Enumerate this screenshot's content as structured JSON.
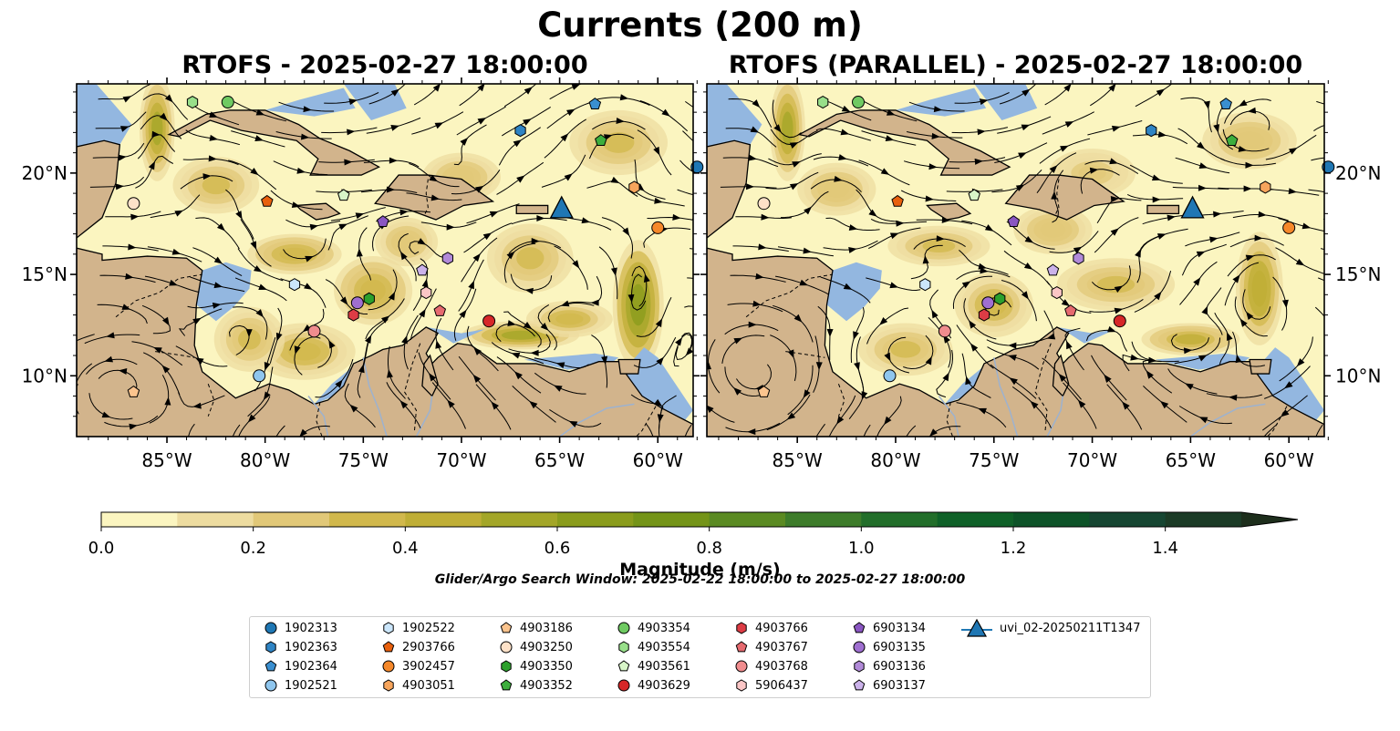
{
  "figure": {
    "suptitle": "Currents (200 m)",
    "panels": [
      {
        "title": "RTOFS - 2025-02-27 18:00:00"
      },
      {
        "title": "RTOFS (PARALLEL) - 2025-02-27 18:00:00"
      }
    ],
    "search_window": "Glider/Argo Search Window: 2025-02-22 18:00:00 to 2025-02-27 18:00:00",
    "colors": {
      "land": "#d2b48c",
      "ocean": "#93b7e0",
      "coast": "#000000"
    }
  },
  "chart_data": {
    "type": "heatmap",
    "variable": "current magnitude with streamlines",
    "x_ticks": [
      "85°W",
      "80°W",
      "75°W",
      "70°W",
      "65°W",
      "60°W"
    ],
    "y_ticks": [
      "20°N",
      "15°N",
      "10°N"
    ],
    "lon_values": [
      -85,
      -80,
      -75,
      -70,
      -65,
      -60
    ],
    "lat_values": [
      20,
      15,
      10
    ],
    "xlim": [
      -89.6,
      -58.2
    ],
    "ylim": [
      7,
      24.4
    ],
    "colorbar": {
      "label": "Magnitude (m/s)",
      "ticks": [
        "0.0",
        "0.2",
        "0.4",
        "0.6",
        "0.8",
        "1.0",
        "1.2",
        "1.4"
      ],
      "range": [
        0,
        1.5
      ],
      "extend": "max",
      "colors": [
        "#fbf5c0",
        "#eddca0",
        "#e1c878",
        "#d1b84c",
        "#bfae36",
        "#a3a628",
        "#8a9c1c",
        "#749418",
        "#5a8a22",
        "#3d7c2a",
        "#226e2a",
        "#0f6128",
        "#0d5328",
        "#164632",
        "#1b3b26",
        "#1d2e1c"
      ]
    },
    "platforms": [
      {
        "id": "1902313",
        "marker": "circle",
        "color": "#1f77b4",
        "lon": -58.0,
        "lat": 20.3
      },
      {
        "id": "1902363",
        "marker": "hexagon",
        "color": "#2f84c4",
        "lon": -67.0,
        "lat": 22.1
      },
      {
        "id": "1902364",
        "marker": "pentagon",
        "color": "#3a8fd0",
        "lon": -63.2,
        "lat": 23.4
      },
      {
        "id": "1902521",
        "marker": "circle",
        "color": "#8fc6ee",
        "lon": -80.3,
        "lat": 10.0
      },
      {
        "id": "1902522",
        "marker": "hexagon",
        "color": "#cbe6fb",
        "lon": -78.5,
        "lat": 14.5
      },
      {
        "id": "2903766",
        "marker": "pentagon",
        "color": "#e8600d",
        "lon": -79.9,
        "lat": 18.6
      },
      {
        "id": "3902457",
        "marker": "circle",
        "color": "#f5882a",
        "lon": -60.0,
        "lat": 17.3
      },
      {
        "id": "4903051",
        "marker": "hexagon",
        "color": "#f7a55c",
        "lon": -61.2,
        "lat": 19.3
      },
      {
        "id": "4903186",
        "marker": "pentagon",
        "color": "#fbc48e",
        "lon": -86.7,
        "lat": 9.2
      },
      {
        "id": "4903250",
        "marker": "circle",
        "color": "#fde1c8",
        "lon": -86.7,
        "lat": 18.5
      },
      {
        "id": "4903350",
        "marker": "hexagon",
        "color": "#2ca02c",
        "lon": -74.7,
        "lat": 13.8
      },
      {
        "id": "4903352",
        "marker": "pentagon",
        "color": "#3dae3d",
        "lon": -62.9,
        "lat": 21.6
      },
      {
        "id": "4903354",
        "marker": "circle",
        "color": "#6fca62",
        "lon": -81.9,
        "lat": 23.5
      },
      {
        "id": "4903554",
        "marker": "hexagon",
        "color": "#98df8a",
        "lon": -83.7,
        "lat": 23.5
      },
      {
        "id": "4903561",
        "marker": "pentagon",
        "color": "#d8f5c8",
        "lon": -76.0,
        "lat": 18.9
      },
      {
        "id": "4903629",
        "marker": "circle",
        "color": "#d62728",
        "lon": -68.6,
        "lat": 12.7
      },
      {
        "id": "4903766",
        "marker": "hexagon",
        "color": "#dd3c45",
        "lon": -75.5,
        "lat": 13.0
      },
      {
        "id": "4903767",
        "marker": "pentagon",
        "color": "#e66a6f",
        "lon": -71.1,
        "lat": 13.2
      },
      {
        "id": "4903768",
        "marker": "circle",
        "color": "#f08c8e",
        "lon": -77.5,
        "lat": 12.2
      },
      {
        "id": "5906437",
        "marker": "hexagon",
        "color": "#fbc6c6",
        "lon": -71.8,
        "lat": 14.1
      },
      {
        "id": "6903134",
        "marker": "pentagon",
        "color": "#8a56c2",
        "lon": -74.0,
        "lat": 17.6
      },
      {
        "id": "6903135",
        "marker": "circle",
        "color": "#9f6fd0",
        "lon": -75.3,
        "lat": 13.6
      },
      {
        "id": "6903136",
        "marker": "hexagon",
        "color": "#b18ad8",
        "lon": -70.7,
        "lat": 15.8
      },
      {
        "id": "6903137",
        "marker": "pentagon",
        "color": "#cbb2ea",
        "lon": -72.0,
        "lat": 15.2
      },
      {
        "id": "uvi_02-20250211T1347",
        "marker": "triangle",
        "color": "#1f77b4",
        "lon": -64.9,
        "lat": 18.2
      }
    ]
  }
}
